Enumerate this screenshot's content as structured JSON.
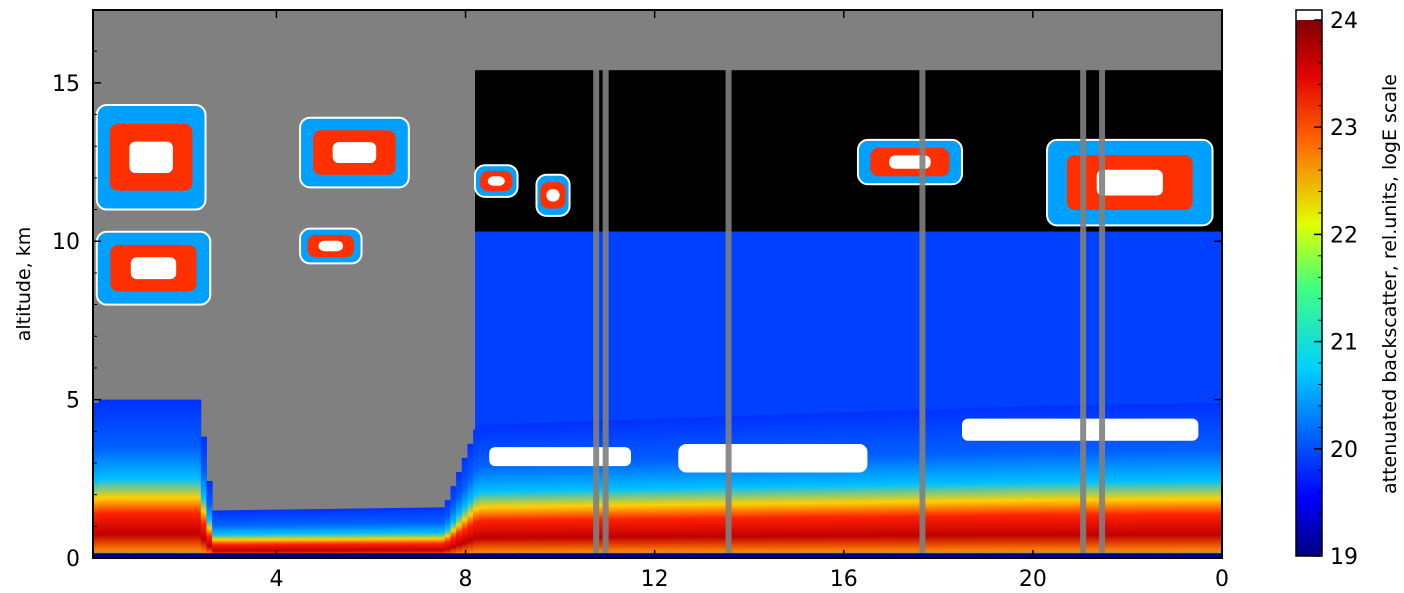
{
  "chart_data": {
    "type": "heatmap",
    "title": "",
    "xlabel": "",
    "ylabel": "altitude, km",
    "x_ticks": [
      4,
      8,
      12,
      16,
      20,
      0
    ],
    "y_ticks": [
      0,
      5,
      10,
      15
    ],
    "ylim": [
      0,
      17.3
    ],
    "xlim_hours": [
      0.12,
      24
    ],
    "x_tick_positions_hours": [
      4,
      8,
      12,
      16,
      20,
      24
    ],
    "colorbar": {
      "label": "attenuated backscatter, rel.units, logE scale",
      "ticks": [
        19,
        20,
        21,
        22,
        23,
        24
      ],
      "range": [
        19,
        24
      ],
      "colormap": "jet",
      "over_color": "#ffffff",
      "missing_color": "#808080",
      "below_color": "#000000"
    },
    "features": {
      "boundary_layer_top_km": [
        [
          0.2,
          5.0
        ],
        [
          2.3,
          5.0
        ],
        [
          2.6,
          1.5
        ],
        [
          7.5,
          1.6
        ],
        [
          8.2,
          4.2
        ],
        [
          12,
          4.4
        ],
        [
          16,
          4.6
        ],
        [
          20,
          4.8
        ],
        [
          24,
          4.9
        ]
      ],
      "cirrus_layers": [
        {
          "hours": [
            0.2,
            2.5
          ],
          "alt_km": [
            11.0,
            14.3
          ]
        },
        {
          "hours": [
            0.2,
            2.6
          ],
          "alt_km": [
            8.0,
            10.3
          ]
        },
        {
          "hours": [
            4.5,
            6.8
          ],
          "alt_km": [
            11.7,
            13.9
          ]
        },
        {
          "hours": [
            4.5,
            5.8
          ],
          "alt_km": [
            9.3,
            10.4
          ]
        },
        {
          "hours": [
            8.2,
            9.1
          ],
          "alt_km": [
            11.4,
            12.4
          ]
        },
        {
          "hours": [
            9.5,
            10.2
          ],
          "alt_km": [
            10.8,
            12.1
          ]
        },
        {
          "hours": [
            16.3,
            18.5
          ],
          "alt_km": [
            11.8,
            13.2
          ]
        },
        {
          "hours": [
            20.3,
            23.8
          ],
          "alt_km": [
            10.5,
            13.2
          ]
        }
      ]
    }
  }
}
